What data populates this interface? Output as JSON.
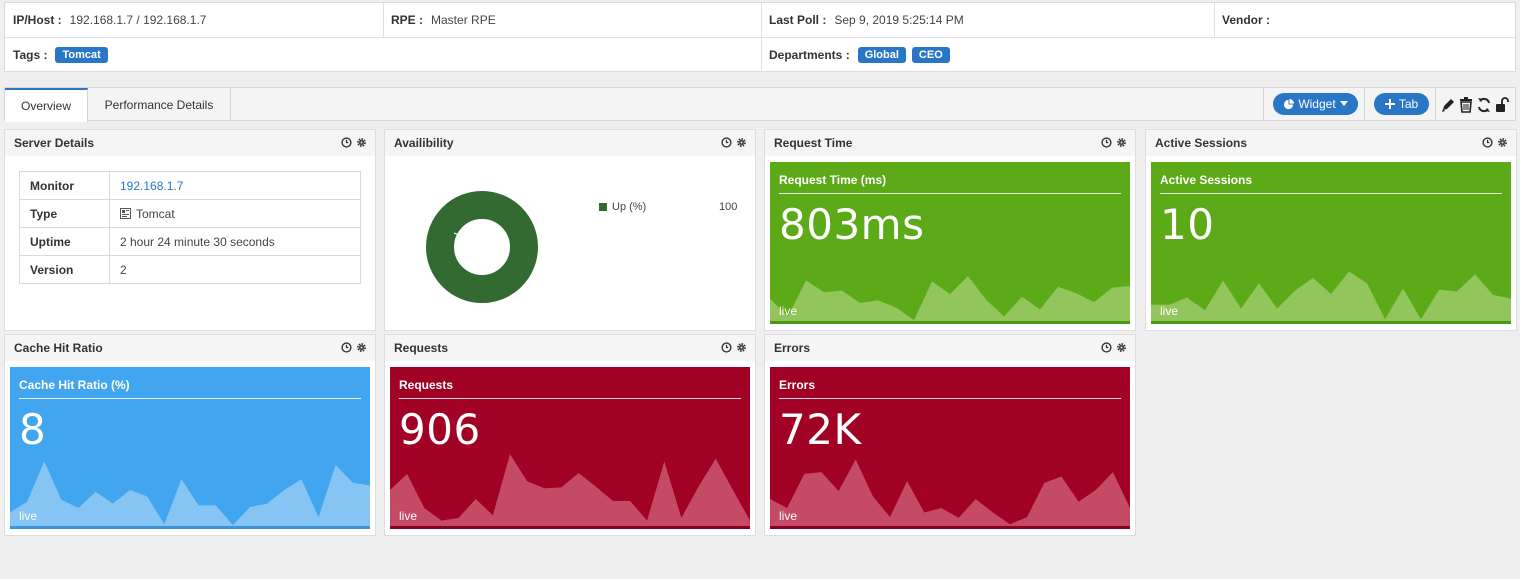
{
  "info": {
    "ip_label": "IP/Host :",
    "ip_value": "192.168.1.7 / 192.168.1.7",
    "rpe_label": "RPE :",
    "rpe_value": "Master RPE",
    "poll_label": "Last Poll :",
    "poll_value": "Sep 9, 2019 5:25:14 PM",
    "vendor_label": "Vendor :",
    "vendor_value": "",
    "tags_label": "Tags :",
    "tags": [
      "Tomcat"
    ],
    "dept_label": "Departments :",
    "departments": [
      "Global",
      "CEO"
    ]
  },
  "tabs": [
    {
      "label": "Overview",
      "active": true
    },
    {
      "label": "Performance Details",
      "active": false
    }
  ],
  "toolbar": {
    "widget_label": "Widget",
    "tab_label": "Tab",
    "icons": [
      "pie-chart-icon",
      "caret-down-icon",
      "plus-icon",
      "pencil-icon",
      "trash-icon",
      "refresh-icon",
      "unlock-icon"
    ]
  },
  "widget_icons": [
    "clock-icon",
    "gear-icon"
  ],
  "server_details": {
    "title": "Server Details",
    "rows": [
      {
        "key": "Monitor",
        "value": "192.168.1.7",
        "link": true
      },
      {
        "key": "Type",
        "value": "Tomcat",
        "icon": "server-type-icon"
      },
      {
        "key": "Uptime",
        "value": "2 hour 24 minute 30 seconds"
      },
      {
        "key": "Version",
        "value": "2"
      }
    ]
  },
  "availability": {
    "title": "Availibility",
    "legend_label": "Up (%)",
    "legend_value": "100",
    "color": "#336a32",
    "chart_data": {
      "type": "pie",
      "categories": [
        "Up (%)"
      ],
      "values": [
        100
      ]
    }
  },
  "metrics": [
    {
      "id": "request-time",
      "title": "Request Time",
      "card_title": "Request Time (ms)",
      "value": "803ms",
      "live": "live",
      "bg": "#5caa18",
      "fill": "#93c55d",
      "bottom": "#4a9914",
      "spark": [
        0.25,
        0.05,
        0.45,
        0.32,
        0.34,
        0.2,
        0.23,
        0.15,
        0.01,
        0.44,
        0.3,
        0.5,
        0.24,
        0.05,
        0.27,
        0.13,
        0.38,
        0.31,
        0.21,
        0.37,
        0.39
      ]
    },
    {
      "id": "active-sessions",
      "title": "Active Sessions",
      "card_title": "Active Sessions",
      "value": "10",
      "live": "live",
      "bg": "#5caa18",
      "fill": "#93c55d",
      "bottom": "#4a9914",
      "spark": [
        0.18,
        0.18,
        0.26,
        0.12,
        0.45,
        0.14,
        0.42,
        0.14,
        0.34,
        0.48,
        0.3,
        0.55,
        0.42,
        0.02,
        0.36,
        0.02,
        0.35,
        0.33,
        0.52,
        0.29,
        0.25
      ]
    },
    {
      "id": "cache-hit-ratio",
      "title": "Cache Hit Ratio",
      "card_title": "Cache Hit Ratio (%)",
      "value": "8",
      "live": "live",
      "bg": "#42a5ef",
      "fill": "#86c5f3",
      "bottom": "#3a95d8",
      "spark": [
        0.15,
        0.27,
        0.72,
        0.29,
        0.2,
        0.38,
        0.25,
        0.4,
        0.33,
        0.02,
        0.52,
        0.23,
        0.23,
        0.01,
        0.21,
        0.25,
        0.4,
        0.52,
        0.1,
        0.68,
        0.48,
        0.45
      ]
    },
    {
      "id": "requests",
      "title": "Requests",
      "card_title": "Requests",
      "value": "906",
      "live": "live",
      "bg": "#a00125",
      "fill": "#c44a66",
      "bottom": "#8a0020",
      "spark": [
        0.4,
        0.58,
        0.2,
        0.06,
        0.09,
        0.3,
        0.12,
        0.8,
        0.5,
        0.42,
        0.43,
        0.59,
        0.44,
        0.28,
        0.28,
        0.06,
        0.72,
        0.09,
        0.44,
        0.75,
        0.4,
        0.06
      ]
    },
    {
      "id": "errors",
      "title": "Errors",
      "card_title": "Errors",
      "value": "72K",
      "live": "live",
      "bg": "#a00125",
      "fill": "#c44a66",
      "bottom": "#8a0020",
      "spark": [
        0.3,
        0.2,
        0.58,
        0.6,
        0.39,
        0.74,
        0.33,
        0.1,
        0.5,
        0.15,
        0.2,
        0.09,
        0.3,
        0.15,
        0.02,
        0.1,
        0.48,
        0.55,
        0.27,
        0.4,
        0.6,
        0.2
      ]
    }
  ]
}
